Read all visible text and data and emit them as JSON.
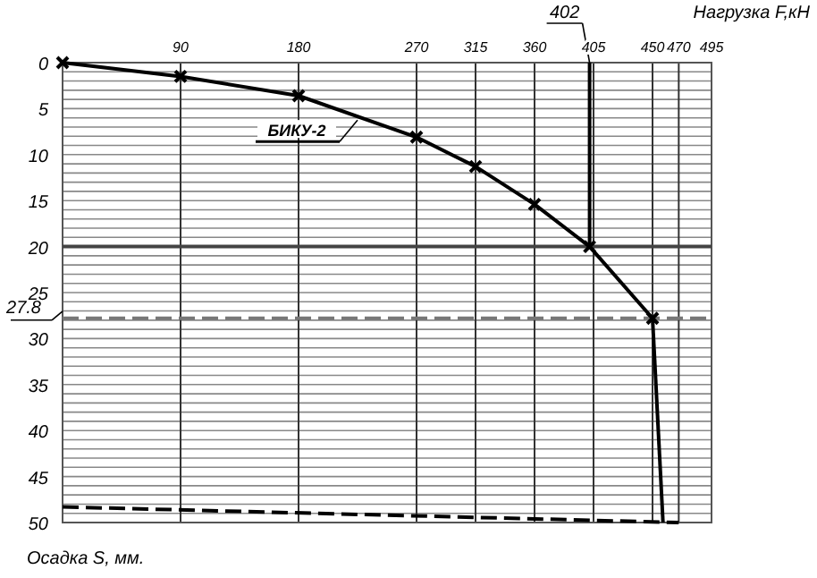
{
  "chart_data": {
    "type": "line",
    "xlabel": "Нагрузка F,кН",
    "ylabel": "Осадка S, мм.",
    "xlim": [
      0,
      495
    ],
    "ylim": [
      50,
      0
    ],
    "xticks": [
      90,
      180,
      270,
      315,
      360,
      405,
      450,
      470,
      495
    ],
    "yticks": [
      0,
      5,
      10,
      15,
      20,
      25,
      30,
      35,
      40,
      45,
      50
    ],
    "grid": true,
    "series": [
      {
        "name": "БИКУ-2",
        "color": "#000000",
        "x": [
          0,
          90,
          180,
          270,
          315,
          360,
          402,
          450
        ],
        "values": [
          0,
          1.5,
          3.6,
          8.1,
          11.3,
          15.4,
          20,
          27.8
        ],
        "marker": "cross",
        "line_style": "solid"
      },
      {
        "color": "#000000",
        "x": [
          450,
          458
        ],
        "values": [
          27.8,
          50
        ],
        "marker": "none",
        "line_style": "solid"
      },
      {
        "color": "#000000",
        "x": [
          0,
          470
        ],
        "values": [
          48.3,
          50
        ],
        "marker": "none",
        "line_style": "dashed"
      },
      {
        "color": "#000000",
        "x": [
          402,
          402
        ],
        "values": [
          0,
          20
        ],
        "marker": "none",
        "line_style": "solid"
      }
    ],
    "ref_lines": [
      {
        "axis": "y",
        "value": 27.8,
        "label": "27.8",
        "line_style": "dashed",
        "color": "#777777"
      },
      {
        "axis": "y",
        "value": 20,
        "label": null,
        "line_style": "solid",
        "color": "#444444"
      }
    ],
    "annotations": [
      {
        "text": "402",
        "x": 402,
        "y": 0
      }
    ]
  }
}
